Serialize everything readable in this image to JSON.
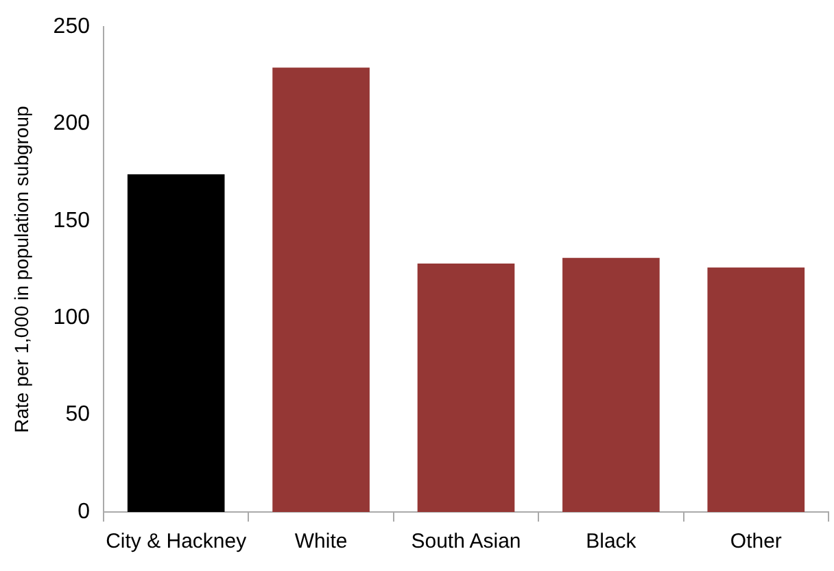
{
  "chart_data": {
    "type": "bar",
    "ylabel": "Rate per 1,000 in population subgroup",
    "categories": [
      "City & Hackney",
      "White",
      "South Asian",
      "Black",
      "Other"
    ],
    "values": [
      174,
      229,
      128,
      131,
      126
    ],
    "colors": [
      "#000000",
      "#953735",
      "#953735",
      "#953735",
      "#953735"
    ],
    "ylim": [
      0,
      250
    ],
    "yticks": [
      0,
      50,
      100,
      150,
      200,
      250
    ],
    "grid": false,
    "legend": false
  }
}
